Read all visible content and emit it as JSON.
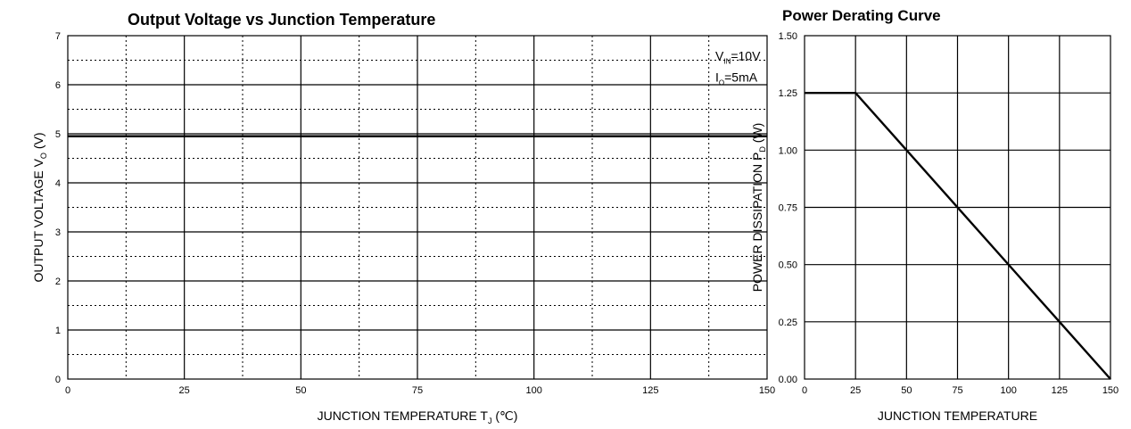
{
  "chart_data": [
    {
      "type": "line",
      "title": "Output Voltage vs Junction Temperature",
      "xlabel": "JUNCTION TEMPERATURE",
      "xlabel_symbol": "T",
      "xlabel_subscript": "J",
      "xlabel_unit": "(℃)",
      "ylabel": "OUTPUT VOLTAGE",
      "ylabel_symbol": "V",
      "ylabel_subscript": "O",
      "ylabel_unit": "(V)",
      "xlim": [
        0,
        150
      ],
      "ylim": [
        0,
        7
      ],
      "x_ticks": [
        "0",
        "25",
        "50",
        "75",
        "100",
        "125",
        "150"
      ],
      "y_ticks": [
        "0",
        "1",
        "2",
        "3",
        "4",
        "5",
        "6",
        "7"
      ],
      "grid": "solid major, dotted minor",
      "annotations": [
        {
          "label": "V",
          "sub": "IN",
          "value": "=10V"
        },
        {
          "label": "I",
          "sub": "O",
          "value": "=5mA"
        }
      ],
      "series": [
        {
          "x": [
            0,
            25,
            50,
            75,
            100,
            125,
            150
          ],
          "y": [
            4.95,
            4.95,
            4.95,
            4.95,
            4.95,
            4.95,
            4.95
          ]
        }
      ]
    },
    {
      "type": "line",
      "title": "Power Derating Curve",
      "xlabel": "JUNCTION TEMPERATURE",
      "ylabel": "POWER DISSIPATION",
      "ylabel_symbol": "P",
      "ylabel_subscript": "D",
      "ylabel_unit": "(W)",
      "xlim": [
        0,
        150
      ],
      "ylim": [
        0,
        1.5
      ],
      "x_ticks": [
        "0",
        "25",
        "50",
        "75",
        "100",
        "125",
        "150"
      ],
      "y_ticks": [
        "0.00",
        "0.25",
        "0.50",
        "0.75",
        "1.00",
        "1.25",
        "1.50"
      ],
      "grid": "solid",
      "series": [
        {
          "x": [
            0,
            25,
            150
          ],
          "y": [
            1.25,
            1.25,
            0
          ]
        }
      ]
    }
  ]
}
